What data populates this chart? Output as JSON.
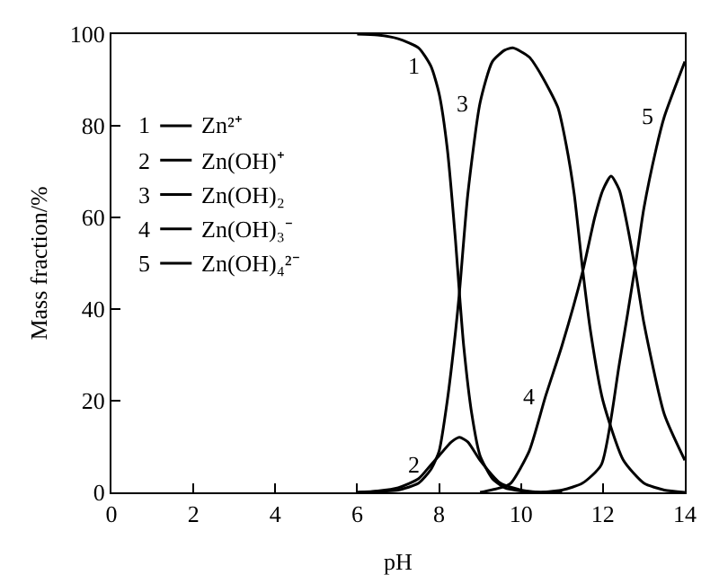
{
  "chart_data": {
    "type": "line",
    "xlabel": "pH",
    "ylabel": "Mass fraction/%",
    "xlim": [
      0,
      14
    ],
    "ylim": [
      0,
      100
    ],
    "xticks": [
      0,
      2,
      4,
      6,
      8,
      10,
      12,
      14
    ],
    "yticks": [
      0,
      20,
      40,
      60,
      80,
      100
    ],
    "grid": false,
    "legend": "top left",
    "marker": "none",
    "line_style": "solid",
    "series": [
      {
        "name": "Zn²⁺",
        "color": "#000000",
        "x": [
          6,
          6.5,
          7,
          7.5,
          7.8,
          8,
          8.2,
          8.4,
          8.5,
          8.6,
          8.8,
          9,
          9.3,
          9.6,
          10,
          10.5,
          11
        ],
        "values": [
          100,
          99.8,
          99,
          97,
          93,
          87,
          75,
          55,
          43,
          32,
          17,
          8,
          3,
          1,
          0.3,
          0,
          0
        ]
      },
      {
        "name": "Zn(OH)⁺",
        "color": "#000000",
        "x": [
          6,
          6.5,
          7,
          7.5,
          7.8,
          8,
          8.3,
          8.5,
          8.7,
          9,
          9.5,
          10,
          10.5,
          11
        ],
        "values": [
          0,
          0.3,
          1,
          3,
          6,
          8,
          11,
          12,
          11,
          7,
          2,
          0.5,
          0,
          0
        ]
      },
      {
        "name": "Zn(OH)₂",
        "color": "#000000",
        "x": [
          6,
          6.5,
          7,
          7.5,
          7.8,
          8,
          8.2,
          8.4,
          8.5,
          8.7,
          9,
          9.3,
          9.6,
          9.8,
          10.2,
          10.5,
          10.9,
          11.1,
          11.3,
          11.5,
          11.7,
          12,
          12.5,
          13,
          13.5,
          14
        ],
        "values": [
          0,
          0.2,
          0.5,
          2,
          5,
          9,
          20,
          35,
          44,
          65,
          85,
          94,
          96.5,
          97,
          95,
          91,
          84,
          76,
          65,
          49,
          35,
          20,
          7,
          2,
          0.5,
          0
        ]
      },
      {
        "name": "Zn(OH)₃⁻",
        "color": "#000000",
        "x": [
          9,
          9.5,
          9.75,
          10.2,
          10.6,
          11,
          11.5,
          11.8,
          12,
          12.2,
          12.4,
          12.6,
          12.8,
          13,
          13.5,
          14
        ],
        "values": [
          0,
          1,
          2,
          9,
          21,
          32,
          48,
          60,
          66,
          69,
          66,
          58,
          48,
          37,
          17,
          7
        ]
      },
      {
        "name": "Zn(OH)₄²⁻",
        "color": "#000000",
        "x": [
          10.5,
          11,
          11.5,
          11.96,
          12.4,
          12.8,
          13,
          13.3,
          13.5,
          14
        ],
        "values": [
          0,
          0.5,
          2,
          6,
          28,
          50,
          62,
          75,
          82,
          94
        ]
      }
    ],
    "annotations": [
      {
        "text": "1",
        "x": 7.8,
        "y": 93
      },
      {
        "text": "2",
        "x": 7.8,
        "y": 6
      },
      {
        "text": "3",
        "x": 9,
        "y": 85
      },
      {
        "text": "4",
        "x": 10.6,
        "y": 21
      },
      {
        "text": "5",
        "x": 13.5,
        "y": 82
      }
    ]
  }
}
